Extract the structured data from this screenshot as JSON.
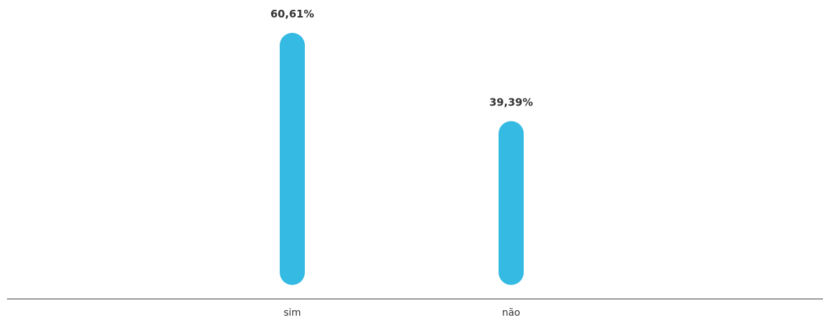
{
  "colors": {
    "bar": "#35bbe3",
    "axis": "#9a9a9a",
    "text": "#333333"
  },
  "chart_data": {
    "type": "bar",
    "categories": [
      "sim",
      "não"
    ],
    "values": [
      60.61,
      39.39
    ],
    "value_labels": [
      "60,61%",
      "39,39%"
    ],
    "unit": "%",
    "title": "",
    "xlabel": "",
    "ylabel": "",
    "ylim": [
      0,
      60.61
    ],
    "grid": false,
    "legend": "none"
  }
}
